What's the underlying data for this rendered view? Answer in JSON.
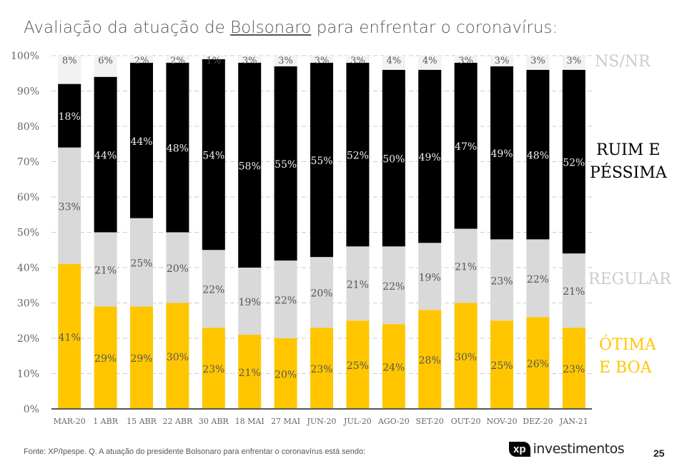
{
  "title": {
    "pre": "Avaliação da atuação de ",
    "underlined": "Bolsonaro",
    "post": " para enfrentar o coronavírus:"
  },
  "source": "Fonte: XP/Ipespe. Q. A atuação do presidente Bolsonaro para enfrentar o coronavírus está sendo:",
  "logo": {
    "mark": "xp",
    "text": "investimentos"
  },
  "page_number": "25",
  "legend": {
    "nsnr": "NS/NR",
    "ruim1": "RUIM E",
    "ruim2": "PÉSSIMA",
    "regular": "REGULAR",
    "otima1": "ÓTIMA",
    "otima2": "E BOA"
  },
  "chart_data": {
    "type": "bar",
    "stacked": true,
    "categories": [
      "MAR-20",
      "1 ABR",
      "15 ABR",
      "22 ABR",
      "30 ABR",
      "18 MAI",
      "27 MAI",
      "JUN-20",
      "JUL-20",
      "AGO-20",
      "SET-20",
      "OUT-20",
      "NOV-20",
      "DEZ-20",
      "JAN-21"
    ],
    "series": [
      {
        "name": "ÓTIMA E BOA",
        "color": "#ffc600",
        "values": [
          41,
          29,
          29,
          30,
          23,
          21,
          20,
          23,
          25,
          24,
          28,
          30,
          25,
          26,
          23
        ]
      },
      {
        "name": "REGULAR",
        "color": "#d9d9d9",
        "values": [
          33,
          21,
          25,
          20,
          22,
          19,
          22,
          20,
          21,
          22,
          19,
          21,
          23,
          22,
          21
        ]
      },
      {
        "name": "RUIM E PÉSSIMA",
        "color": "#000000",
        "values": [
          18,
          44,
          44,
          48,
          54,
          58,
          55,
          55,
          52,
          50,
          49,
          47,
          49,
          48,
          52
        ]
      },
      {
        "name": "NS/NR",
        "color": "#f2f2f2",
        "values": [
          8,
          6,
          2,
          2,
          1,
          3,
          3,
          3,
          3,
          4,
          4,
          3,
          3,
          3,
          3
        ]
      }
    ],
    "yticks": [
      "0%",
      "10%",
      "20%",
      "30%",
      "40%",
      "50%",
      "60%",
      "70%",
      "80%",
      "90%",
      "100%"
    ],
    "ylim": [
      0,
      100
    ],
    "grid": true,
    "legend_placement": "right"
  }
}
